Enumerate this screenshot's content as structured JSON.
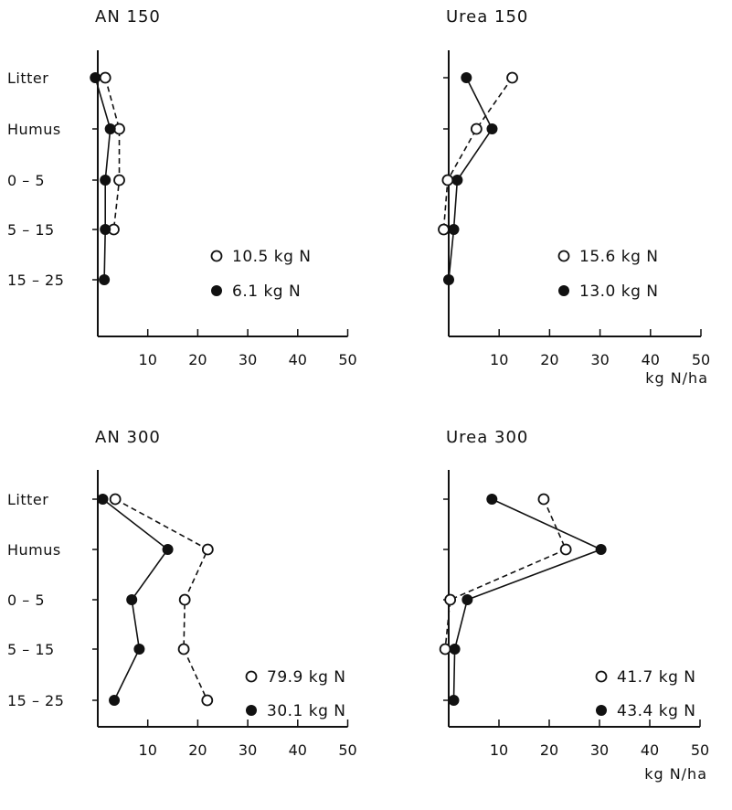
{
  "chart_data": [
    {
      "type": "line",
      "title": "AN 150",
      "xlabel": "",
      "categories": [
        "Litter",
        "Humus",
        "0 – 5",
        "5 – 15",
        "15 – 25"
      ],
      "xticks": [
        "10",
        "20",
        "30",
        "40",
        "50"
      ],
      "xlim": [
        0,
        50
      ],
      "series": [
        {
          "name": "10.5 kg N",
          "marker": "open",
          "style": "dashed",
          "values": [
            1.5,
            4.3,
            4.3,
            3.2,
            null
          ]
        },
        {
          "name": "6.1 kg N",
          "marker": "filled",
          "style": "solid",
          "values": [
            -0.5,
            2.5,
            1.5,
            1.5,
            1.3
          ]
        }
      ]
    },
    {
      "type": "line",
      "title": "Urea 150",
      "xlabel": "kg N/ha",
      "categories": [
        "Litter",
        "Humus",
        "0 – 5",
        "5 – 15",
        "15 – 25"
      ],
      "xticks": [
        "10",
        "20",
        "30",
        "40",
        "50"
      ],
      "xlim": [
        0,
        50
      ],
      "series": [
        {
          "name": "15.6 kg N",
          "marker": "open",
          "style": "dashed",
          "values": [
            12.6,
            5.5,
            -0.2,
            -1.0,
            null
          ]
        },
        {
          "name": "13.0 kg N",
          "marker": "filled",
          "style": "solid",
          "values": [
            3.5,
            8.6,
            1.7,
            1.0,
            0.0
          ]
        }
      ]
    },
    {
      "type": "line",
      "title": "AN 300",
      "xlabel": "",
      "categories": [
        "Litter",
        "Humus",
        "0 – 5",
        "5 – 15",
        "15 – 25"
      ],
      "xticks": [
        "10",
        "20",
        "30",
        "40",
        "50"
      ],
      "xlim": [
        0,
        50
      ],
      "series": [
        {
          "name": "79.9 kg N",
          "marker": "open",
          "style": "dashed",
          "values": [
            3.5,
            22.0,
            17.4,
            17.2,
            21.9
          ]
        },
        {
          "name": "30.1 kg N",
          "marker": "filled",
          "style": "solid",
          "values": [
            1.0,
            14.0,
            6.8,
            8.3,
            3.3
          ]
        }
      ]
    },
    {
      "type": "line",
      "title": "Urea 300",
      "xlabel": "kg N/ha",
      "categories": [
        "Litter",
        "Humus",
        "0 – 5",
        "5 – 15",
        "15 – 25"
      ],
      "xticks": [
        "10",
        "20",
        "30",
        "40",
        "50"
      ],
      "xlim": [
        0,
        50
      ],
      "series": [
        {
          "name": "41.7 kg N",
          "marker": "open",
          "style": "dashed",
          "values": [
            18.9,
            23.3,
            0.3,
            -0.7,
            null
          ]
        },
        {
          "name": "43.4 kg N",
          "marker": "filled",
          "style": "solid",
          "values": [
            8.6,
            30.3,
            3.7,
            1.2,
            1.0
          ]
        }
      ]
    }
  ]
}
